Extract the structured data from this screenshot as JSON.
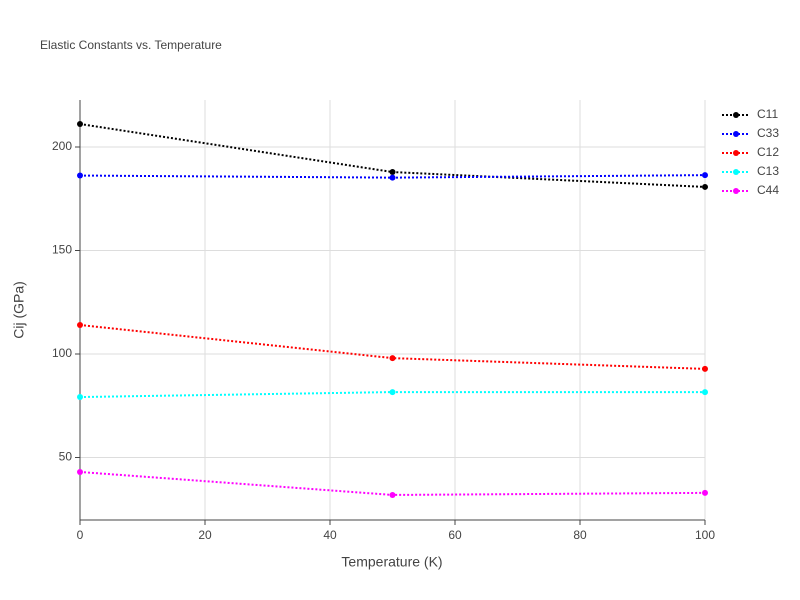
{
  "chart_data": {
    "type": "line",
    "title": "Elastic Constants vs. Temperature",
    "x_label": "Temperature (K)",
    "y_label": "Cij (GPa)",
    "x": [
      0,
      50,
      100
    ],
    "series": [
      {
        "name": "C11",
        "color": "#000000",
        "values": [
          211.1,
          187.9,
          180.7
        ]
      },
      {
        "name": "C33",
        "color": "#0000ff",
        "values": [
          186.2,
          185.2,
          186.4
        ]
      },
      {
        "name": "C12",
        "color": "#ff0000",
        "values": [
          114,
          98,
          92.8
        ]
      },
      {
        "name": "C13",
        "color": "#00ffff",
        "values": [
          79.2,
          81.6,
          81.6
        ]
      },
      {
        "name": "C44",
        "color": "#ff00ff",
        "values": [
          43,
          31.9,
          32.9
        ]
      }
    ],
    "xlim": [
      0,
      100
    ],
    "xticks": [
      0,
      20,
      40,
      60,
      80,
      100
    ],
    "ylim": [
      19.8,
      222.7
    ],
    "yticks": [
      50,
      100,
      150,
      200
    ],
    "grid": true,
    "line_style": "dotted",
    "legend": "right"
  }
}
